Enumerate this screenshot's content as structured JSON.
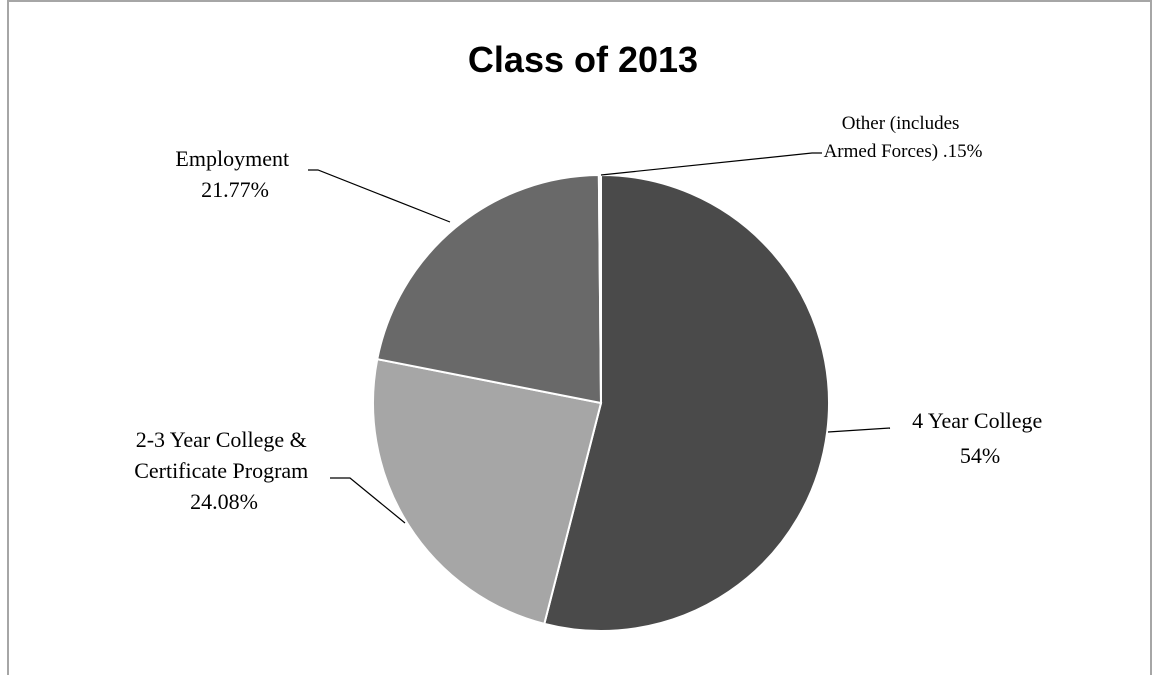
{
  "chart_data": {
    "type": "pie",
    "title": "Class of 2013",
    "slices": [
      {
        "label_lines": [
          "4 Year College",
          "54%"
        ],
        "value": 54,
        "color": "#4a4a4a"
      },
      {
        "label_lines": [
          "2-3 Year College &",
          "Certificate Program",
          "24.08%"
        ],
        "value": 24.08,
        "color": "#a6a6a6"
      },
      {
        "label_lines": [
          "Employment",
          "21.77%"
        ],
        "value": 21.77,
        "color": "#696969"
      },
      {
        "label_lines": [
          "Other (includes",
          "Armed Forces) .15%"
        ],
        "value": 0.15,
        "color": "#d9d9d9"
      }
    ],
    "start_angle_deg": 0,
    "direction": "clockwise"
  }
}
